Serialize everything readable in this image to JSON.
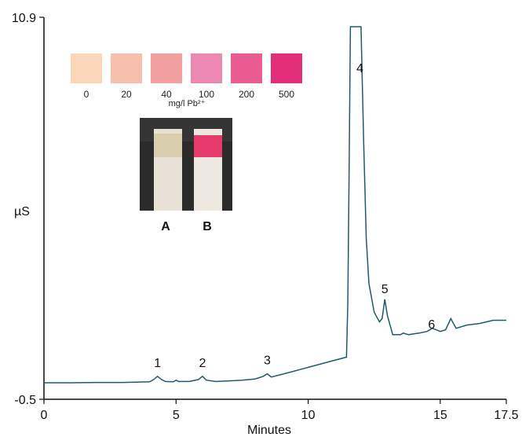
{
  "chart_data": {
    "type": "line",
    "title": "",
    "xlabel": "Minutes",
    "ylabel": "µS",
    "xlim": [
      0,
      17.5
    ],
    "ylim": [
      -0.5,
      10.9
    ],
    "x_ticks": [
      "0",
      "5",
      "10",
      "15",
      "17.5"
    ],
    "y_ticks": [
      "-0.5",
      "10.9"
    ],
    "line_color": "#1f5a6b",
    "series": [
      {
        "x": [
          0,
          1,
          2,
          3,
          4,
          4.15,
          4.3,
          4.45,
          4.6,
          4.9,
          5.0,
          5.1,
          5.5,
          5.85,
          6.0,
          6.15,
          6.5,
          7,
          7.5,
          8,
          8.3,
          8.45,
          8.6,
          9,
          10,
          11,
          11.45,
          11.5,
          11.55,
          11.6,
          11.7,
          11.9,
          12.0,
          12.1,
          12.2,
          12.3,
          12.5,
          12.7,
          12.8,
          12.9,
          13.0,
          13.2,
          13.5,
          13.6,
          13.8,
          14.2,
          14.5,
          14.7,
          14.85,
          15.0,
          15.2,
          15.4,
          15.6,
          16.0,
          16.5,
          17.0,
          17.5
        ],
        "y": [
          -0.5,
          -0.5,
          -0.49,
          -0.49,
          -0.47,
          -0.4,
          -0.3,
          -0.4,
          -0.46,
          -0.47,
          -0.42,
          -0.46,
          -0.46,
          -0.4,
          -0.3,
          -0.42,
          -0.46,
          -0.44,
          -0.42,
          -0.38,
          -0.3,
          -0.22,
          -0.32,
          -0.24,
          -0.02,
          0.2,
          0.3,
          2.0,
          6.0,
          10.9,
          10.9,
          10.9,
          10.9,
          7.0,
          4.0,
          2.6,
          1.7,
          1.4,
          1.5,
          2.1,
          1.6,
          1.0,
          1.0,
          1.05,
          1.0,
          1.05,
          1.1,
          1.2,
          1.15,
          1.1,
          1.15,
          1.5,
          1.2,
          1.3,
          1.35,
          1.45,
          1.45
        ]
      }
    ],
    "peak_annotations": [
      {
        "label": "1",
        "x": 4.3,
        "y": -0.3
      },
      {
        "label": "2",
        "x": 6.0,
        "y": -0.3
      },
      {
        "label": "3",
        "x": 8.45,
        "y": -0.22
      },
      {
        "label": "4",
        "x": 11.6,
        "y": 10.2
      },
      {
        "label": "5",
        "x": 12.9,
        "y": 2.1
      },
      {
        "label": "6",
        "x": 14.85,
        "y": 1.2
      }
    ]
  },
  "inset": {
    "swatches": [
      {
        "label": "0",
        "color": "#fbd6b8"
      },
      {
        "label": "20",
        "color": "#f6bfae"
      },
      {
        "label": "40",
        "color": "#f2a1a0"
      },
      {
        "label": "100",
        "color": "#ec88b2"
      },
      {
        "label": "200",
        "color": "#ea5c92"
      },
      {
        "label": "500",
        "color": "#e22f78"
      }
    ],
    "caption": "mg/l Pb²⁺",
    "strips": [
      {
        "label": "A",
        "pad_color": "#d9cfae"
      },
      {
        "label": "B",
        "pad_color": "#e73a6c"
      }
    ]
  }
}
